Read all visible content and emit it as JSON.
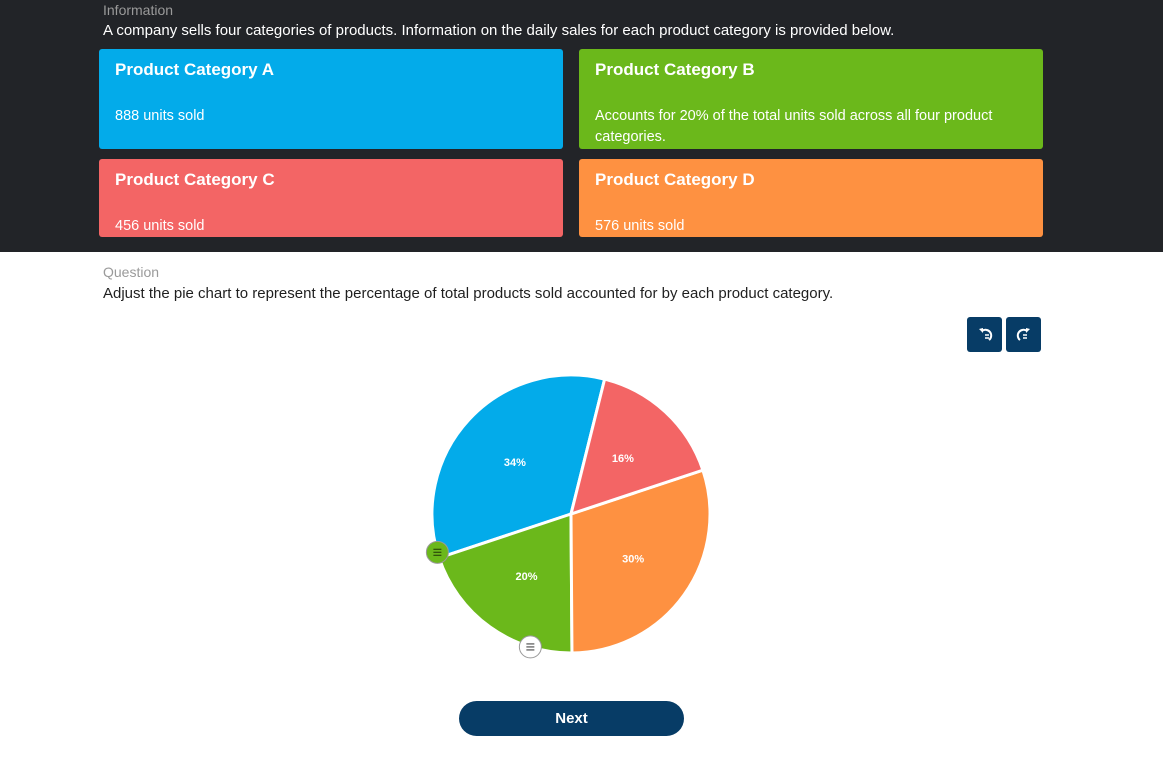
{
  "information": {
    "label": "Information",
    "text": "A company sells four categories of products. Information on the daily sales for each product category is provided below.",
    "cards": [
      {
        "title": "Product Category A",
        "body": "888 units sold",
        "color": "#03abea"
      },
      {
        "title": "Product Category B",
        "body": "Accounts for 20% of the total units sold across all four product categories.",
        "color": "#6bb81b"
      },
      {
        "title": "Product Category C",
        "body": "456 units sold",
        "color": "#f36565"
      },
      {
        "title": "Product Category D",
        "body": "576 units sold",
        "color": "#fe9141"
      }
    ]
  },
  "question": {
    "label": "Question",
    "text": "Adjust the pie chart to represent the percentage of total products sold accounted for by each product category."
  },
  "toolbar": {
    "undo_icon": "undo-icon",
    "redo_icon": "redo-icon"
  },
  "chart_data": {
    "type": "pie",
    "categories": [
      "Product Category A",
      "Product Category B",
      "Product Category D",
      "Product Category C"
    ],
    "values": [
      34,
      20,
      30,
      16
    ],
    "labels": [
      "34%",
      "20%",
      "30%",
      "16%"
    ],
    "colors": [
      "#03abea",
      "#6bb81b",
      "#fe9141",
      "#f36565"
    ]
  },
  "next_label": "Next"
}
